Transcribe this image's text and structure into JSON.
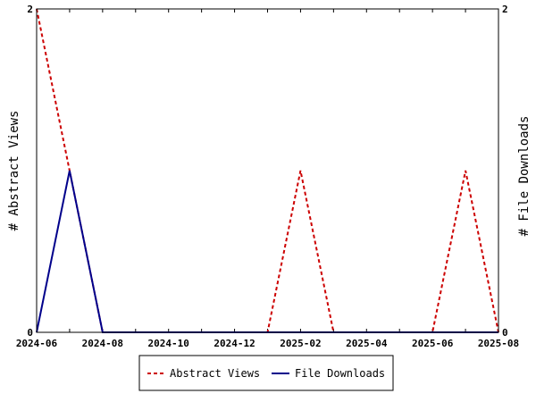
{
  "chart_data": {
    "type": "line",
    "x_labels": [
      "2024-06",
      "2024-08",
      "2024-10",
      "2024-12",
      "2025-02",
      "2025-04",
      "2025-06",
      "2025-08"
    ],
    "x": [
      "2024-06",
      "2024-07",
      "2024-08",
      "2024-09",
      "2024-10",
      "2024-11",
      "2024-12",
      "2025-01",
      "2025-02",
      "2025-03",
      "2025-04",
      "2025-05",
      "2025-06",
      "2025-07",
      "2025-08"
    ],
    "series": [
      {
        "name": "Abstract Views",
        "axis": "left",
        "color": "#cc0000",
        "dash": true,
        "values": [
          2,
          1,
          0,
          0,
          0,
          0,
          0,
          0,
          1,
          0,
          0,
          0,
          0,
          1,
          0
        ]
      },
      {
        "name": "File Downloads",
        "axis": "right",
        "color": "#00008b",
        "dash": false,
        "values": [
          0,
          1,
          0,
          0,
          0,
          0,
          0,
          0,
          0,
          0,
          0,
          0,
          0,
          0,
          0
        ]
      }
    ],
    "ylabel_left": "# Abstract Views",
    "ylabel_right": "# File Downloads",
    "ylim_left": [
      0,
      2
    ],
    "ylim_right": [
      0,
      2
    ],
    "y_ticks_left": [
      "0",
      "2"
    ],
    "y_ticks_right": [
      "0",
      "2"
    ],
    "legend_position": "bottom-center",
    "grid": false
  }
}
